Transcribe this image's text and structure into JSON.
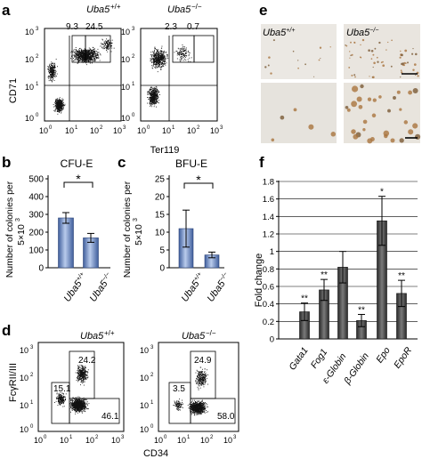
{
  "panels": {
    "a": {
      "letter": "a",
      "ylabel": "CD71",
      "xlabel": "Ter119",
      "ticks": [
        "10^0",
        "10^1",
        "10^2",
        "10^3"
      ],
      "plots": [
        {
          "genotype_base": "Uba5",
          "genotype_sup": "+/+",
          "q_left": "9.3",
          "q_right": "24.5"
        },
        {
          "genotype_base": "Uba5",
          "genotype_sup": "−/−",
          "q_left": "2.3",
          "q_right": "0.7"
        }
      ]
    },
    "b": {
      "letter": "b",
      "title": "CFU-E",
      "ylabel_line1": "Number of colonies per",
      "ylabel_line2": "5×10",
      "ylabel_sup": "3",
      "significance": "*",
      "yticks": [
        "0",
        "100",
        "200",
        "300",
        "400",
        "500"
      ]
    },
    "c": {
      "letter": "c",
      "title": "BFU-E",
      "ylabel_line1": "Number of colonies per",
      "ylabel_line2": "5×10",
      "ylabel_sup": "3",
      "significance": "*",
      "yticks": [
        "0",
        "5",
        "10",
        "15",
        "20",
        "25"
      ]
    },
    "d": {
      "letter": "d",
      "ylabel_base": "Fcγ",
      "ylabel_rest": "RII/III",
      "xlabel": "CD34",
      "ticks": [
        "10^0",
        "10^1",
        "10^2",
        "10^3"
      ],
      "plots": [
        {
          "genotype_base": "Uba5",
          "genotype_sup": "+/+",
          "gate_top": "24.2",
          "gate_left": "15.1",
          "gate_right": "46.1"
        },
        {
          "genotype_base": "Uba5",
          "genotype_sup": "−/−",
          "gate_top": "24.9",
          "gate_left": "3.5",
          "gate_right": "58.0"
        }
      ]
    },
    "e": {
      "letter": "e",
      "label_wt_base": "Uba5",
      "label_wt_sup": "+/+",
      "label_ko_base": "Uba5",
      "label_ko_sup": "−/−"
    },
    "f": {
      "letter": "f",
      "ylabel": "Fold change",
      "yticks": [
        "0",
        "0.2",
        "0.4",
        "0.6",
        "0.8",
        "1",
        "1.2",
        "1.4",
        "1.6",
        "1.8"
      ]
    }
  },
  "chart_data": [
    {
      "type": "bar",
      "title": "CFU-E",
      "categories": [
        "Uba5+/+",
        "Uba5−/−"
      ],
      "values": [
        280,
        168
      ],
      "errors": [
        30,
        25
      ],
      "ylabel": "Number of colonies per 5×10^3",
      "ylim": [
        0,
        500
      ],
      "annotation": "*"
    },
    {
      "type": "bar",
      "title": "BFU-E",
      "categories": [
        "Uba5+/+",
        "Uba5−/−"
      ],
      "values": [
        11,
        3.6
      ],
      "errors": [
        5.2,
        0.8
      ],
      "ylabel": "Number of colonies per 5×10^3",
      "ylim": [
        0,
        25
      ],
      "annotation": "*"
    },
    {
      "type": "bar",
      "categories": [
        "Gata1",
        "Fog1",
        "ε-Globin",
        "β-Globin",
        "Epo",
        "EpoR"
      ],
      "values": [
        0.31,
        0.56,
        0.82,
        0.21,
        1.35,
        0.52
      ],
      "errors": [
        0.1,
        0.12,
        0.18,
        0.07,
        0.28,
        0.15
      ],
      "significance": [
        "**",
        "**",
        "",
        "**",
        "*",
        "**"
      ],
      "ylabel": "Fold change",
      "ylim": [
        0,
        1.8
      ],
      "grid": true
    }
  ]
}
